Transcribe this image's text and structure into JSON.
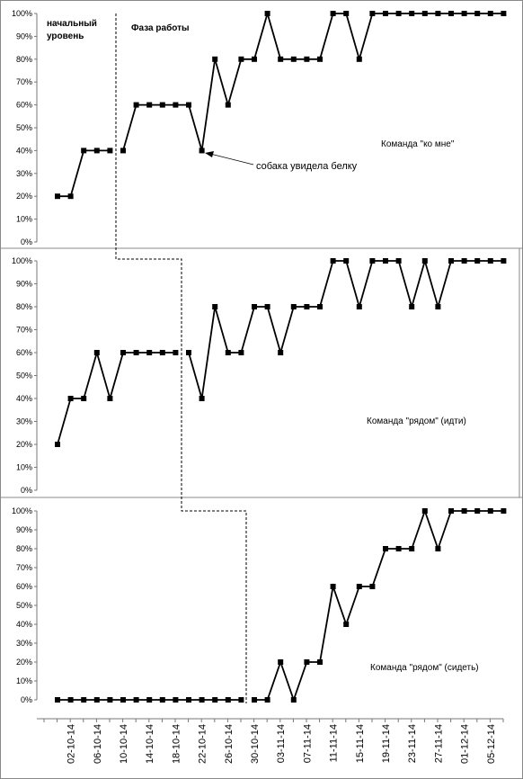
{
  "chart_data": {
    "type": "line",
    "x_tick_labels": [
      "02-10-14",
      "06-10-14",
      "10-10-14",
      "14-10-14",
      "18-10-14",
      "22-10-14",
      "26-10-14",
      "30-10-14",
      "03-11-14",
      "07-11-14",
      "11-11-14",
      "15-11-14",
      "19-11-14",
      "23-11-14",
      "27-11-14",
      "01-12-14",
      "05-12-14"
    ],
    "y_tick_labels": [
      "0%",
      "10%",
      "20%",
      "30%",
      "40%",
      "50%",
      "60%",
      "70%",
      "80%",
      "90%",
      "100%"
    ],
    "ylim": [
      0,
      100
    ],
    "phase_labels": {
      "baseline_line1": "начальный",
      "baseline_line2": "уровень",
      "work": "Фаза работы"
    },
    "annotation": {
      "text": "собака увидела белку"
    },
    "panels": [
      {
        "label": "Команда \"ко мне\"",
        "phase_break_after_index": 4,
        "values": [
          20,
          20,
          40,
          40,
          40,
          40,
          60,
          60,
          60,
          60,
          60,
          40,
          80,
          60,
          80,
          80,
          100,
          80,
          80,
          80,
          80,
          100,
          100,
          80,
          100,
          100,
          100,
          100,
          100,
          100,
          100,
          100,
          100,
          100,
          100
        ]
      },
      {
        "label": "Команда \"рядом\" (идти)",
        "phase_break_after_index": 9,
        "values": [
          20,
          40,
          40,
          60,
          40,
          60,
          60,
          60,
          60,
          60,
          60,
          40,
          80,
          60,
          60,
          80,
          80,
          60,
          80,
          80,
          80,
          100,
          100,
          80,
          100,
          100,
          100,
          80,
          100,
          80,
          100,
          100,
          100,
          100,
          100
        ]
      },
      {
        "label": "Команда \"рядом\" (сидеть)",
        "phase_break_after_index": 14,
        "values": [
          0,
          0,
          0,
          0,
          0,
          0,
          0,
          0,
          0,
          0,
          0,
          0,
          0,
          0,
          0,
          0,
          0,
          20,
          0,
          20,
          20,
          60,
          40,
          60,
          60,
          80,
          80,
          80,
          100,
          80,
          100,
          100,
          100,
          100,
          100
        ]
      }
    ]
  }
}
